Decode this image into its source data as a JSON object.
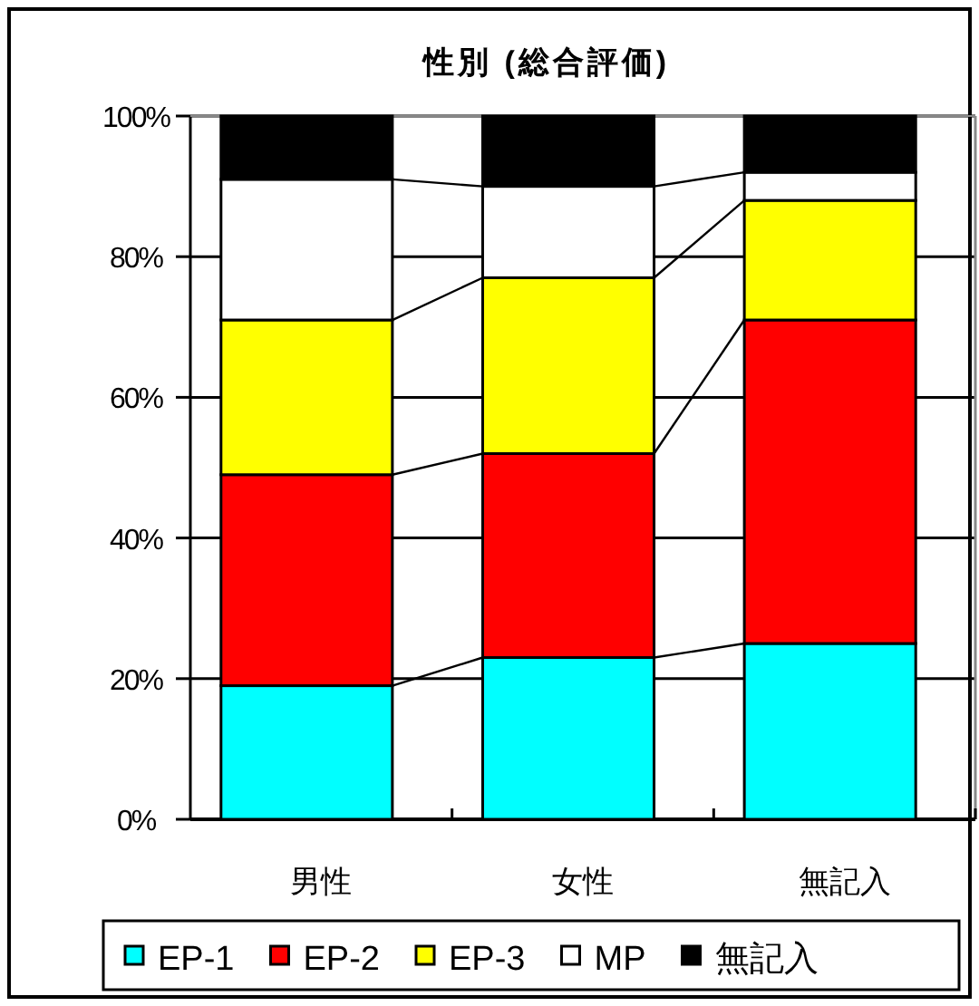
{
  "chart_data": {
    "type": "bar",
    "stacked": true,
    "title": "性別 (総合評価)",
    "categories": [
      "男性",
      "女性",
      "無記入"
    ],
    "series": [
      {
        "name": "EP-1",
        "color": "#00ffff",
        "values": [
          19,
          23,
          25
        ]
      },
      {
        "name": "EP-2",
        "color": "#ff0000",
        "values": [
          30,
          29,
          46
        ]
      },
      {
        "name": "EP-3",
        "color": "#ffff00",
        "values": [
          22,
          25,
          17
        ]
      },
      {
        "name": "MP",
        "color": "#ffffff",
        "values": [
          20,
          13,
          4
        ]
      },
      {
        "name": "無記入",
        "color": "#000000",
        "values": [
          9,
          10,
          8
        ]
      }
    ],
    "ylim": [
      0,
      100
    ],
    "yticks": [
      {
        "value": 0,
        "label": "0%"
      },
      {
        "value": 20,
        "label": "20%"
      },
      {
        "value": 40,
        "label": "40%"
      },
      {
        "value": 60,
        "label": "60%"
      },
      {
        "value": 80,
        "label": "80%"
      },
      {
        "value": 100,
        "label": "100%"
      }
    ],
    "grid": "y",
    "legend": "bottom"
  }
}
